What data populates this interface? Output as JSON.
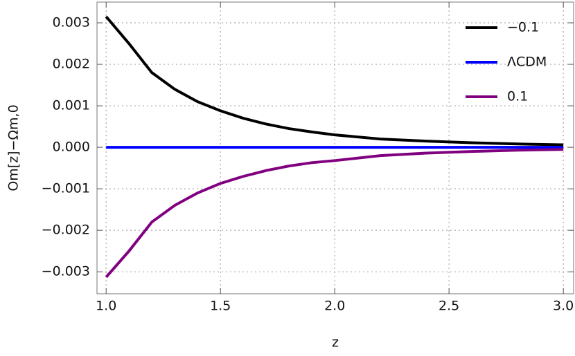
{
  "chart_data": {
    "type": "line",
    "x_label": "z",
    "y_label": "Om[z]−Ωm,0",
    "x": [
      1.0,
      1.1,
      1.2,
      1.3,
      1.4,
      1.5,
      1.6,
      1.7,
      1.8,
      1.9,
      2.0,
      2.2,
      2.4,
      2.6,
      2.8,
      3.0
    ],
    "series": [
      {
        "name": "−0.1",
        "color": "#000000",
        "values": [
          0.00315,
          0.0025,
          0.0018,
          0.0014,
          0.0011,
          0.00088,
          0.0007,
          0.00056,
          0.00045,
          0.00037,
          0.0003,
          0.0002,
          0.00015,
          0.00011,
          8e-05,
          6e-05
        ]
      },
      {
        "name": "ΛCDM",
        "color": "#0000ff",
        "values": [
          0,
          0,
          0,
          0,
          0,
          0,
          0,
          0,
          0,
          0,
          0,
          0,
          0,
          0,
          0,
          0
        ]
      },
      {
        "name": "0.1",
        "color": "#800080",
        "values": [
          -0.00313,
          -0.0025,
          -0.0018,
          -0.0014,
          -0.0011,
          -0.00087,
          -0.0007,
          -0.00056,
          -0.00045,
          -0.00037,
          -0.00032,
          -0.0002,
          -0.00014,
          -0.0001,
          -7e-05,
          -5e-05
        ]
      }
    ],
    "xlim": [
      0.96,
      3.045
    ],
    "ylim": [
      -0.00353,
      0.0035
    ],
    "xticks": [
      {
        "value": 1.0,
        "label": "1.0"
      },
      1.5,
      {
        "value": 2.0,
        "label": "2.0"
      },
      2.5,
      {
        "value": 3.0,
        "label": "3.0"
      }
    ],
    "yticks": [
      {
        "value": -0.003,
        "label": "−0.003"
      },
      {
        "value": -0.002,
        "label": "−0.002"
      },
      {
        "value": -0.001,
        "label": "−0.001"
      },
      {
        "value": 0,
        "label": "0.000"
      },
      0.001,
      0.002,
      0.003
    ],
    "grid": true,
    "legend": "upper right"
  }
}
